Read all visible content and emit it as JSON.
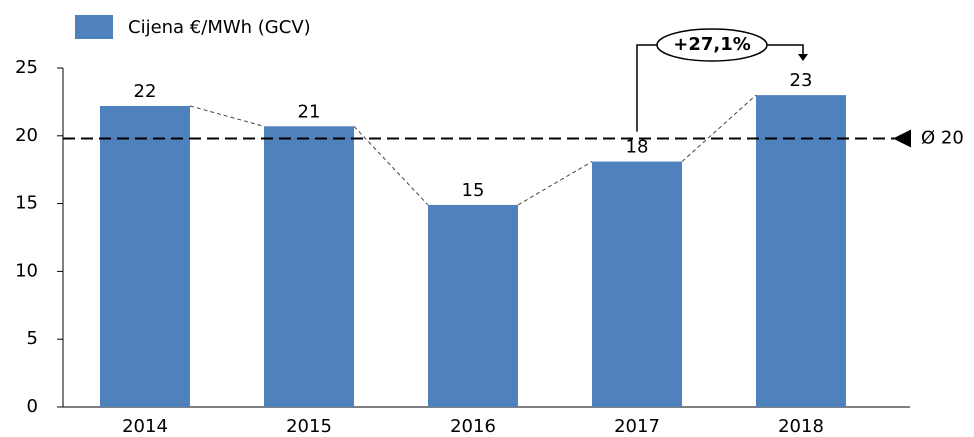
{
  "chart_data": {
    "type": "bar",
    "categories": [
      "2014",
      "2015",
      "2016",
      "2017",
      "2018"
    ],
    "series": [
      {
        "name": "Cijena €/MWh (GCV)",
        "color": "#4f81bd",
        "values": [
          22.2,
          20.7,
          14.9,
          18.1,
          23.0
        ],
        "value_labels": [
          "22",
          "21",
          "15",
          "18",
          "23"
        ]
      }
    ],
    "ylim": [
      0,
      25
    ],
    "yticks": [
      0,
      5,
      10,
      15,
      20,
      25
    ],
    "average": {
      "value": 19.8,
      "label": "Ø 20"
    },
    "annotation": "+27,1%"
  }
}
